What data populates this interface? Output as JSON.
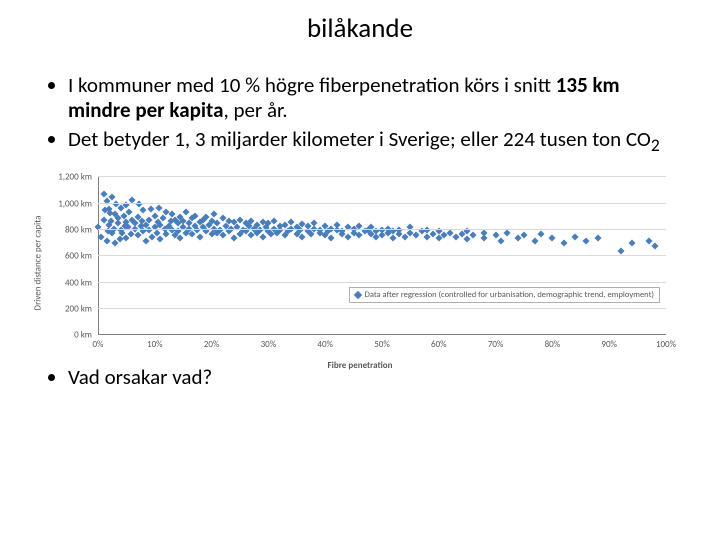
{
  "title": "bilåkande",
  "bullets": [
    {
      "html": "I kommuner med 10 % högre fiberpenetration körs i snitt <b>135 km mindre per kapita</b>, per år."
    },
    {
      "html": "Det betyder 1, 3 miljarder kilometer i Sverige; eller 224 tusen ton CO<sub>2</sub>"
    }
  ],
  "bottom_bullet": "Vad orsakar vad?",
  "chart": {
    "type": "scatter",
    "ylabel": "Driven distance per capita",
    "xlabel": "Fibre penetration",
    "legend_text": "Data after regression (controlled for urbanisation, demographic trend, employment)",
    "ylim": [
      0,
      1200
    ],
    "ytick_step": 200,
    "ytick_format": "en-US",
    "xlim": [
      0,
      100
    ],
    "xtick_step": 10,
    "xtick_suffix": "%",
    "marker_color": "#4a7ebb",
    "grid_color": "#d9d9d9",
    "axis_color": "#808080",
    "text_color": "#595959",
    "background_color": "#ffffff",
    "points": [
      {
        "x": 0,
        "y": 820
      },
      {
        "x": 0.5,
        "y": 750
      },
      {
        "x": 1,
        "y": 880
      },
      {
        "x": 1,
        "y": 1070
      },
      {
        "x": 1.2,
        "y": 950
      },
      {
        "x": 1.5,
        "y": 720
      },
      {
        "x": 1.5,
        "y": 1020
      },
      {
        "x": 1.8,
        "y": 790
      },
      {
        "x": 2,
        "y": 840
      },
      {
        "x": 2,
        "y": 960
      },
      {
        "x": 2.1,
        "y": 930
      },
      {
        "x": 2.3,
        "y": 870
      },
      {
        "x": 2.5,
        "y": 1050
      },
      {
        "x": 2.5,
        "y": 780
      },
      {
        "x": 2.8,
        "y": 810
      },
      {
        "x": 3,
        "y": 920
      },
      {
        "x": 3,
        "y": 700
      },
      {
        "x": 3.2,
        "y": 1000
      },
      {
        "x": 3.5,
        "y": 850
      },
      {
        "x": 3.6,
        "y": 890
      },
      {
        "x": 3.8,
        "y": 730
      },
      {
        "x": 4,
        "y": 970
      },
      {
        "x": 4,
        "y": 800
      },
      {
        "x": 4.2,
        "y": 780
      },
      {
        "x": 4.5,
        "y": 910
      },
      {
        "x": 4.7,
        "y": 830
      },
      {
        "x": 5,
        "y": 860
      },
      {
        "x": 5,
        "y": 990
      },
      {
        "x": 5,
        "y": 740
      },
      {
        "x": 5.3,
        "y": 820
      },
      {
        "x": 5.5,
        "y": 940
      },
      {
        "x": 5.8,
        "y": 770
      },
      {
        "x": 6,
        "y": 880
      },
      {
        "x": 6,
        "y": 1030
      },
      {
        "x": 6.5,
        "y": 810
      },
      {
        "x": 6.5,
        "y": 850
      },
      {
        "x": 7,
        "y": 900
      },
      {
        "x": 7,
        "y": 760
      },
      {
        "x": 7.2,
        "y": 995
      },
      {
        "x": 7.5,
        "y": 830
      },
      {
        "x": 7.8,
        "y": 870
      },
      {
        "x": 8,
        "y": 790
      },
      {
        "x": 8,
        "y": 950
      },
      {
        "x": 8.4,
        "y": 720
      },
      {
        "x": 8.5,
        "y": 840
      },
      {
        "x": 9,
        "y": 880
      },
      {
        "x": 9,
        "y": 800
      },
      {
        "x": 9.3,
        "y": 960
      },
      {
        "x": 9.5,
        "y": 750
      },
      {
        "x": 10,
        "y": 820
      },
      {
        "x": 10,
        "y": 910
      },
      {
        "x": 10.3,
        "y": 780
      },
      {
        "x": 10.5,
        "y": 860
      },
      {
        "x": 10.8,
        "y": 970
      },
      {
        "x": 11,
        "y": 730
      },
      {
        "x": 11,
        "y": 840
      },
      {
        "x": 11.5,
        "y": 890
      },
      {
        "x": 11.8,
        "y": 810
      },
      {
        "x": 12,
        "y": 770
      },
      {
        "x": 12,
        "y": 940
      },
      {
        "x": 12.5,
        "y": 830
      },
      {
        "x": 12.8,
        "y": 870
      },
      {
        "x": 13,
        "y": 800
      },
      {
        "x": 13,
        "y": 920
      },
      {
        "x": 13.5,
        "y": 760
      },
      {
        "x": 13.5,
        "y": 880
      },
      {
        "x": 14,
        "y": 850
      },
      {
        "x": 14,
        "y": 790
      },
      {
        "x": 14.5,
        "y": 900
      },
      {
        "x": 14.5,
        "y": 740
      },
      {
        "x": 15,
        "y": 820
      },
      {
        "x": 15,
        "y": 870
      },
      {
        "x": 15.5,
        "y": 780
      },
      {
        "x": 15.5,
        "y": 940
      },
      {
        "x": 16,
        "y": 810
      },
      {
        "x": 16,
        "y": 850
      },
      {
        "x": 16.5,
        "y": 890
      },
      {
        "x": 16.5,
        "y": 770
      },
      {
        "x": 17,
        "y": 830
      },
      {
        "x": 17,
        "y": 910
      },
      {
        "x": 17.5,
        "y": 800
      },
      {
        "x": 18,
        "y": 860
      },
      {
        "x": 18,
        "y": 750
      },
      {
        "x": 18.5,
        "y": 880
      },
      {
        "x": 18.5,
        "y": 820
      },
      {
        "x": 19,
        "y": 790
      },
      {
        "x": 19,
        "y": 900
      },
      {
        "x": 19.5,
        "y": 840
      },
      {
        "x": 20,
        "y": 770
      },
      {
        "x": 20,
        "y": 870
      },
      {
        "x": 20.5,
        "y": 810
      },
      {
        "x": 20.5,
        "y": 920
      },
      {
        "x": 21,
        "y": 780
      },
      {
        "x": 21,
        "y": 850
      },
      {
        "x": 21.5,
        "y": 800
      },
      {
        "x": 22,
        "y": 890
      },
      {
        "x": 22,
        "y": 760
      },
      {
        "x": 22.5,
        "y": 830
      },
      {
        "x": 23,
        "y": 870
      },
      {
        "x": 23,
        "y": 790
      },
      {
        "x": 23.5,
        "y": 810
      },
      {
        "x": 24,
        "y": 860
      },
      {
        "x": 24,
        "y": 740
      },
      {
        "x": 24.5,
        "y": 820
      },
      {
        "x": 25,
        "y": 880
      },
      {
        "x": 25,
        "y": 770
      },
      {
        "x": 25.5,
        "y": 800
      },
      {
        "x": 26,
        "y": 850
      },
      {
        "x": 26,
        "y": 790
      },
      {
        "x": 26.5,
        "y": 830
      },
      {
        "x": 27,
        "y": 870
      },
      {
        "x": 27,
        "y": 760
      },
      {
        "x": 27.5,
        "y": 810
      },
      {
        "x": 28,
        "y": 840
      },
      {
        "x": 28,
        "y": 780
      },
      {
        "x": 28.5,
        "y": 800
      },
      {
        "x": 29,
        "y": 860
      },
      {
        "x": 29,
        "y": 750
      },
      {
        "x": 29.5,
        "y": 820
      },
      {
        "x": 30,
        "y": 790
      },
      {
        "x": 30,
        "y": 850
      },
      {
        "x": 30.5,
        "y": 770
      },
      {
        "x": 31,
        "y": 810
      },
      {
        "x": 31,
        "y": 870
      },
      {
        "x": 31.5,
        "y": 780
      },
      {
        "x": 32,
        "y": 830
      },
      {
        "x": 32,
        "y": 800
      },
      {
        "x": 33,
        "y": 760
      },
      {
        "x": 33,
        "y": 840
      },
      {
        "x": 33.5,
        "y": 790
      },
      {
        "x": 34,
        "y": 810
      },
      {
        "x": 34,
        "y": 860
      },
      {
        "x": 35,
        "y": 770
      },
      {
        "x": 35,
        "y": 820
      },
      {
        "x": 35.5,
        "y": 800
      },
      {
        "x": 36,
        "y": 845
      },
      {
        "x": 36,
        "y": 750
      },
      {
        "x": 37,
        "y": 790
      },
      {
        "x": 37,
        "y": 830
      },
      {
        "x": 37.5,
        "y": 770
      },
      {
        "x": 38,
        "y": 810
      },
      {
        "x": 38,
        "y": 850
      },
      {
        "x": 39,
        "y": 780
      },
      {
        "x": 39,
        "y": 800
      },
      {
        "x": 40,
        "y": 760
      },
      {
        "x": 40,
        "y": 830
      },
      {
        "x": 40.5,
        "y": 790
      },
      {
        "x": 41,
        "y": 810
      },
      {
        "x": 41,
        "y": 740
      },
      {
        "x": 42,
        "y": 800
      },
      {
        "x": 42,
        "y": 840
      },
      {
        "x": 43,
        "y": 770
      },
      {
        "x": 43,
        "y": 790
      },
      {
        "x": 44,
        "y": 820
      },
      {
        "x": 44,
        "y": 750
      },
      {
        "x": 45,
        "y": 780
      },
      {
        "x": 45,
        "y": 810
      },
      {
        "x": 46,
        "y": 760
      },
      {
        "x": 46,
        "y": 830
      },
      {
        "x": 47,
        "y": 790
      },
      {
        "x": 47.5,
        "y": 800
      },
      {
        "x": 48,
        "y": 770
      },
      {
        "x": 48,
        "y": 820
      },
      {
        "x": 49,
        "y": 750
      },
      {
        "x": 49,
        "y": 790
      },
      {
        "x": 50,
        "y": 800
      },
      {
        "x": 50,
        "y": 760
      },
      {
        "x": 51,
        "y": 780
      },
      {
        "x": 51,
        "y": 810
      },
      {
        "x": 52,
        "y": 740
      },
      {
        "x": 52,
        "y": 790
      },
      {
        "x": 53,
        "y": 770
      },
      {
        "x": 53,
        "y": 800
      },
      {
        "x": 54,
        "y": 750
      },
      {
        "x": 55,
        "y": 780
      },
      {
        "x": 55,
        "y": 820
      },
      {
        "x": 56,
        "y": 760
      },
      {
        "x": 57,
        "y": 790
      },
      {
        "x": 58,
        "y": 750
      },
      {
        "x": 58,
        "y": 800
      },
      {
        "x": 59,
        "y": 770
      },
      {
        "x": 60,
        "y": 740
      },
      {
        "x": 60,
        "y": 790
      },
      {
        "x": 61,
        "y": 760
      },
      {
        "x": 62,
        "y": 780
      },
      {
        "x": 63,
        "y": 750
      },
      {
        "x": 64,
        "y": 770
      },
      {
        "x": 65,
        "y": 790
      },
      {
        "x": 65,
        "y": 730
      },
      {
        "x": 66,
        "y": 760
      },
      {
        "x": 68,
        "y": 780
      },
      {
        "x": 68,
        "y": 740
      },
      {
        "x": 70,
        "y": 760
      },
      {
        "x": 71,
        "y": 720
      },
      {
        "x": 72,
        "y": 780
      },
      {
        "x": 74,
        "y": 740
      },
      {
        "x": 75,
        "y": 760
      },
      {
        "x": 77,
        "y": 720
      },
      {
        "x": 78,
        "y": 770
      },
      {
        "x": 80,
        "y": 740
      },
      {
        "x": 82,
        "y": 700
      },
      {
        "x": 84,
        "y": 750
      },
      {
        "x": 86,
        "y": 720
      },
      {
        "x": 88,
        "y": 740
      },
      {
        "x": 92,
        "y": 640
      },
      {
        "x": 94,
        "y": 700
      },
      {
        "x": 97,
        "y": 720
      },
      {
        "x": 98,
        "y": 680
      }
    ]
  }
}
